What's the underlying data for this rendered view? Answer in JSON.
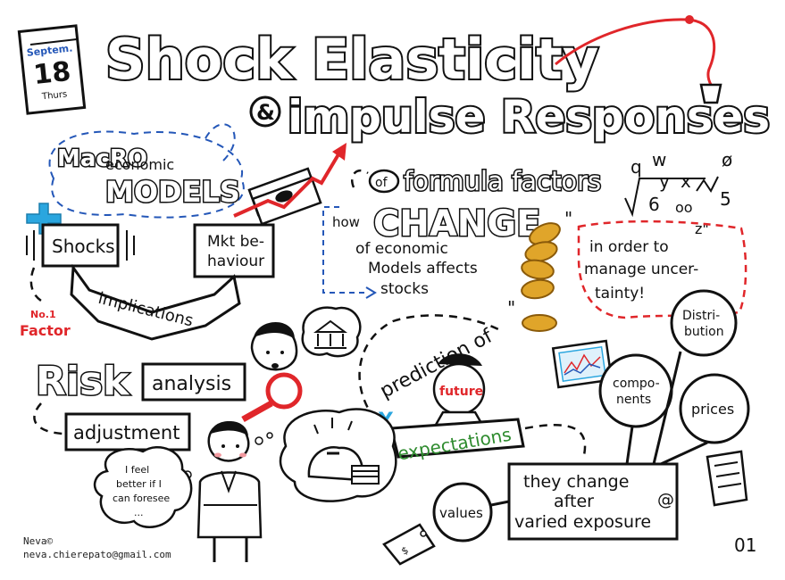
{
  "title": {
    "line1": "Shock Elasticity",
    "amp": "&",
    "line2": "impulse Responses"
  },
  "calendar": {
    "month": "Septem.",
    "day": "18",
    "weekday": "Thurs"
  },
  "macro": {
    "word1": "MacRO",
    "word2": "economic",
    "word3": "MODELS"
  },
  "flow": {
    "shocks": "Shocks",
    "mkt_line1": "Mkt be-",
    "mkt_line2": "haviour",
    "implications": "implications",
    "factor_line1": "No.1",
    "factor_line2": "Factor"
  },
  "formula": {
    "of": "of",
    "factors": "formula factors",
    "how": "how",
    "change": "CHANGE",
    "sub_line1": "of economic",
    "sub_line2": "Models affects",
    "sub_line3": "stocks",
    "symbols": [
      "q",
      "w",
      "y",
      "x",
      "6",
      "oo",
      "5",
      "z\"",
      "ø"
    ]
  },
  "uncertainty": {
    "line1": "in order to",
    "line2": "manage uncer-",
    "line3": "tainty!"
  },
  "risk": {
    "risk": "Risk",
    "analysis": "analysis",
    "adjustment": "adjustment"
  },
  "prediction": {
    "label": "prediction of",
    "future": "future",
    "y": "Y",
    "expectations": "expectations"
  },
  "bubbles": {
    "distribution_line1": "Distri-",
    "distribution_line2": "bution",
    "components_line1": "compo-",
    "components_line2": "nents",
    "prices": "prices",
    "values": "values"
  },
  "change_box": {
    "line1": "they change",
    "line2": "after",
    "line3": "varied exposure",
    "at": "@"
  },
  "thought": {
    "line1": "I feel",
    "line2": "better if I",
    "line3": "can foresee",
    "line4": "..."
  },
  "credit": {
    "author": "Neva©",
    "email": "neva.chierepato@gmail.com"
  },
  "page_number": "01",
  "colors": {
    "red": "#e0262a",
    "blue": "#2457b8",
    "cyan": "#2aa6df",
    "gold": "#e0a52a",
    "green": "#2e8b2e"
  }
}
